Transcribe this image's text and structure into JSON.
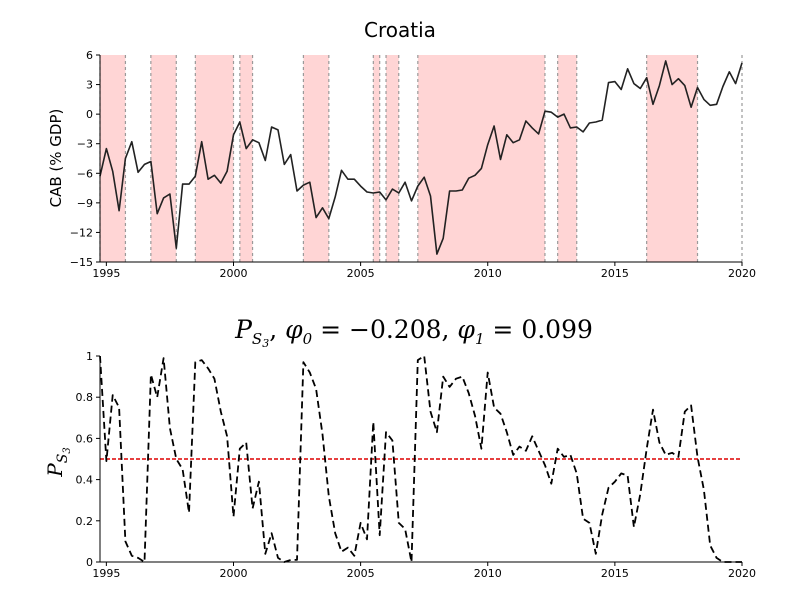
{
  "chart_data": [
    {
      "type": "line",
      "title": "Croatia",
      "xlabel": "",
      "ylabel": "CAB (% GDP)",
      "xlim": [
        1994.75,
        2020.0
      ],
      "ylim": [
        -15,
        6
      ],
      "yticks": [
        6,
        3,
        0,
        -3,
        -6,
        -9,
        -12,
        -15
      ],
      "xticks": [
        1995,
        2000,
        2005,
        2010,
        2015,
        2020
      ],
      "line_color": "#222222",
      "highlight_color": "#ffd5d5",
      "highlight_periods": [
        [
          1994.75,
          1995.75
        ],
        [
          1996.75,
          1997.75
        ],
        [
          1998.5,
          2000.0
        ],
        [
          2000.25,
          2000.75
        ],
        [
          2002.75,
          2003.75
        ],
        [
          2005.5,
          2005.75
        ],
        [
          2006.0,
          2006.5
        ],
        [
          2007.25,
          2012.25
        ],
        [
          2012.75,
          2013.5
        ],
        [
          2016.25,
          2018.25
        ]
      ],
      "series": [
        {
          "x": [
            1994.75,
            1995.0,
            1995.25,
            1995.5,
            1995.75,
            1996.0,
            1996.25,
            1996.5,
            1996.75,
            1997.0,
            1997.25,
            1997.5,
            1997.75,
            1998.0,
            1998.25,
            1998.5,
            1998.75,
            1999.0,
            1999.25,
            1999.5,
            1999.75,
            2000.0,
            2000.25,
            2000.5,
            2000.75,
            2001.0,
            2001.25,
            2001.5,
            2001.75,
            2002.0,
            2002.25,
            2002.5,
            2002.75,
            2003.0,
            2003.25,
            2003.5,
            2003.75,
            2004.0,
            2004.25,
            2004.5,
            2004.75,
            2005.0,
            2005.25,
            2005.5,
            2005.75,
            2006.0,
            2006.25,
            2006.5,
            2006.75,
            2007.0,
            2007.25,
            2007.5,
            2007.75,
            2008.0,
            2008.25,
            2008.5,
            2008.75,
            2009.0,
            2009.25,
            2009.5,
            2009.75,
            2010.0,
            2010.25,
            2010.5,
            2010.75,
            2011.0,
            2011.25,
            2011.5,
            2011.75,
            2012.0,
            2012.25,
            2012.5,
            2012.75,
            2013.0,
            2013.25,
            2013.5,
            2013.75,
            2014.0,
            2014.25,
            2014.5,
            2014.75,
            2015.0,
            2015.25,
            2015.5,
            2015.75,
            2016.0,
            2016.25,
            2016.5,
            2016.75,
            2017.0,
            2017.25,
            2017.5,
            2017.75,
            2018.0,
            2018.25,
            2018.5,
            2018.75,
            2019.0,
            2019.25,
            2019.5,
            2019.75,
            2020.0
          ],
          "y": [
            -6.3,
            -3.5,
            -5.8,
            -9.8,
            -4.5,
            -2.8,
            -5.9,
            -5.1,
            -4.8,
            -10.1,
            -8.5,
            -8.1,
            -13.6,
            -7.1,
            -7.1,
            -6.3,
            -2.8,
            -6.6,
            -6.2,
            -7.0,
            -5.8,
            -2.1,
            -0.8,
            -3.5,
            -2.6,
            -2.9,
            -4.7,
            -1.3,
            -1.6,
            -5.1,
            -4.1,
            -7.8,
            -7.2,
            -6.9,
            -10.5,
            -9.5,
            -10.6,
            -8.4,
            -5.7,
            -6.6,
            -6.6,
            -7.3,
            -7.9,
            -8.0,
            -7.9,
            -8.7,
            -7.6,
            -8.0,
            -6.9,
            -8.8,
            -7.3,
            -6.4,
            -8.3,
            -14.2,
            -12.6,
            -7.8,
            -7.8,
            -7.7,
            -6.5,
            -6.2,
            -5.5,
            -3.1,
            -1.2,
            -4.6,
            -2.1,
            -2.9,
            -2.6,
            -0.7,
            -1.4,
            -2.0,
            0.3,
            0.2,
            -0.3,
            0.0,
            -1.4,
            -1.3,
            -1.8,
            -0.9,
            -0.8,
            -0.6,
            3.2,
            3.3,
            2.5,
            4.6,
            3.1,
            2.6,
            3.7,
            1.0,
            2.9,
            5.4,
            3.0,
            3.6,
            2.9,
            0.7,
            2.7,
            1.5,
            0.9,
            1.0,
            2.8,
            4.3,
            3.1,
            5.2
          ]
        }
      ]
    },
    {
      "type": "line",
      "title": "P_{S_3}, φ_0 = −0.208, φ_1 = 0.099",
      "title_parts": {
        "p": "P",
        "sub_s": "S",
        "sub_3": "3",
        "phi": "φ",
        "sub_0": "0",
        "eq0": " = −0.208, ",
        "sub_1": "1",
        "eq1": " = 0.099",
        "comma": ", "
      },
      "xlabel": "",
      "ylabel": "P_{S_3}",
      "xlim": [
        1994.75,
        2020.0
      ],
      "ylim": [
        0,
        1
      ],
      "yticks": [
        0,
        0.2,
        0.4,
        0.6,
        0.8,
        1
      ],
      "xticks": [
        1995,
        2000,
        2005,
        2010,
        2015,
        2020
      ],
      "threshold": 0.5,
      "threshold_color": "#dd0000",
      "line_color": "#000000",
      "line_style": "dashed",
      "series": [
        {
          "x": [
            1994.75,
            1995.0,
            1995.25,
            1995.5,
            1995.75,
            1996.0,
            1996.25,
            1996.5,
            1996.75,
            1997.0,
            1997.25,
            1997.5,
            1997.75,
            1998.0,
            1998.25,
            1998.5,
            1998.75,
            1999.0,
            1999.25,
            1999.5,
            1999.75,
            2000.0,
            2000.25,
            2000.5,
            2000.75,
            2001.0,
            2001.25,
            2001.5,
            2001.75,
            2002.0,
            2002.25,
            2002.5,
            2002.75,
            2003.0,
            2003.25,
            2003.5,
            2003.75,
            2004.0,
            2004.25,
            2004.5,
            2004.75,
            2005.0,
            2005.25,
            2005.5,
            2005.75,
            2006.0,
            2006.25,
            2006.5,
            2006.75,
            2007.0,
            2007.25,
            2007.5,
            2007.75,
            2008.0,
            2008.25,
            2008.5,
            2008.75,
            2009.0,
            2009.25,
            2009.5,
            2009.75,
            2010.0,
            2010.25,
            2010.5,
            2010.75,
            2011.0,
            2011.25,
            2011.5,
            2011.75,
            2012.0,
            2012.25,
            2012.5,
            2012.75,
            2013.0,
            2013.25,
            2013.5,
            2013.75,
            2014.0,
            2014.25,
            2014.5,
            2014.75,
            2015.0,
            2015.25,
            2015.5,
            2015.75,
            2016.0,
            2016.25,
            2016.5,
            2016.75,
            2017.0,
            2017.25,
            2017.5,
            2017.75,
            2018.0,
            2018.25,
            2018.5,
            2018.75,
            2019.0,
            2019.25,
            2019.5,
            2019.75,
            2020.0
          ],
          "y": [
            1.0,
            0.49,
            0.81,
            0.75,
            0.1,
            0.03,
            0.02,
            0.0,
            0.91,
            0.8,
            0.99,
            0.65,
            0.5,
            0.45,
            0.24,
            0.97,
            0.98,
            0.94,
            0.89,
            0.73,
            0.61,
            0.22,
            0.55,
            0.58,
            0.26,
            0.39,
            0.04,
            0.14,
            0.02,
            0.0,
            0.01,
            0.01,
            0.97,
            0.92,
            0.84,
            0.62,
            0.32,
            0.14,
            0.05,
            0.07,
            0.03,
            0.19,
            0.11,
            0.68,
            0.13,
            0.63,
            0.59,
            0.19,
            0.16,
            0.0,
            0.98,
            1.0,
            0.73,
            0.63,
            0.9,
            0.85,
            0.89,
            0.9,
            0.82,
            0.71,
            0.55,
            0.92,
            0.75,
            0.72,
            0.63,
            0.52,
            0.56,
            0.54,
            0.61,
            0.54,
            0.47,
            0.38,
            0.55,
            0.51,
            0.52,
            0.43,
            0.21,
            0.19,
            0.04,
            0.23,
            0.36,
            0.39,
            0.43,
            0.42,
            0.17,
            0.33,
            0.55,
            0.74,
            0.58,
            0.52,
            0.53,
            0.51,
            0.73,
            0.76,
            0.51,
            0.35,
            0.08,
            0.02,
            0.0,
            0.0,
            0.0,
            0.0
          ]
        }
      ]
    }
  ]
}
